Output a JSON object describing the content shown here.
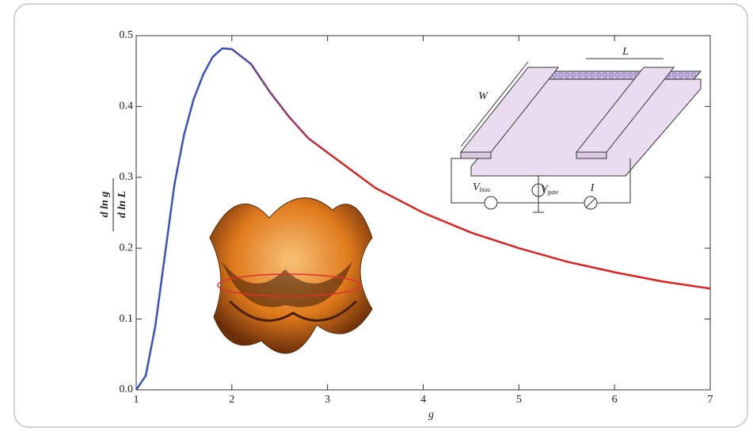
{
  "chart_data": {
    "type": "line",
    "xlabel": "g",
    "ylabel": {
      "numerator": "d ln g",
      "denominator": "d ln L"
    },
    "x": [
      1,
      1.1,
      1.2,
      1.3,
      1.4,
      1.5,
      1.6,
      1.7,
      1.8,
      1.9,
      2.0,
      2.2,
      2.4,
      2.6,
      2.8,
      3,
      3.5,
      4,
      4.5,
      5,
      5.5,
      6,
      6.5,
      7
    ],
    "series": [
      {
        "colors": [
          "#3a4fc0",
          "#e02020"
        ],
        "values": [
          0,
          0.02,
          0.09,
          0.19,
          0.29,
          0.36,
          0.41,
          0.445,
          0.47,
          0.482,
          0.481,
          0.46,
          0.42,
          0.385,
          0.355,
          0.335,
          0.285,
          0.25,
          0.222,
          0.2,
          0.181,
          0.166,
          0.153,
          0.143
        ]
      }
    ],
    "xlim": [
      1,
      7
    ],
    "ylim": [
      0,
      0.5
    ],
    "xticks": [
      1,
      2,
      3,
      4,
      5,
      6,
      7
    ],
    "yticks": [
      {
        "value": 0,
        "label": "0.0"
      },
      0.1,
      0.2,
      0.3,
      0.4,
      0.5
    ],
    "inset_labels": [
      {
        "main": "L",
        "sub": ""
      },
      {
        "main": "W",
        "sub": ""
      },
      {
        "main": "V",
        "sub": "bias"
      },
      {
        "main": "V",
        "sub": "gate"
      },
      {
        "main": "I",
        "sub": ""
      }
    ]
  }
}
